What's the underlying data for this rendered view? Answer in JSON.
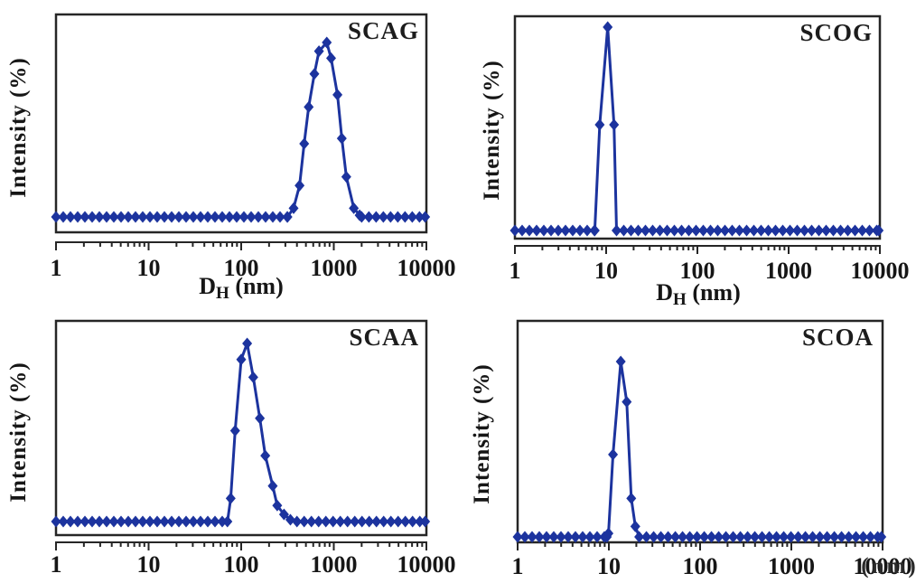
{
  "figure": {
    "background_color": "#ffffff",
    "series_color": "#1c339e",
    "axis_color": "#262626",
    "text_color": "#161616",
    "description": "Four DLS intensity-weighted hydrodynamic size distribution plots"
  },
  "chart_data": [
    {
      "type": "line",
      "title": "SCAG",
      "ylabel": "Intensity (%)",
      "xlabel": "D_H (nm)",
      "xlabel_visible": true,
      "xlabel_parts": {
        "main": "D",
        "sub": "H",
        "unit": " (nm)"
      },
      "x_scale": "log",
      "xlim": [
        1,
        10000
      ],
      "x_tick_labels": [
        "1",
        "10",
        "100",
        "1000",
        "10000"
      ],
      "marker": "diamond",
      "series_color": "#1c339e",
      "baseline_intensity": 0,
      "baseline_segments_nm": [
        [
          1,
          316
        ],
        [
          2000,
          9700
        ]
      ],
      "peak_points": [
        [
          368,
          5
        ],
        [
          427,
          18
        ],
        [
          479,
          42
        ],
        [
          536,
          63
        ],
        [
          617,
          82
        ],
        [
          692,
          95
        ],
        [
          840,
          100
        ],
        [
          935,
          91
        ],
        [
          1096,
          70
        ],
        [
          1220,
          45
        ],
        [
          1365,
          23
        ],
        [
          1645,
          5
        ],
        [
          1900,
          1
        ]
      ],
      "peak_nm": 840
    },
    {
      "type": "line",
      "title": "SCOG",
      "ylabel": "Intensity (%)",
      "xlabel": "D_H (nm)",
      "xlabel_visible": true,
      "xlabel_parts": {
        "main": "D",
        "sub": "H",
        "unit": " (nm)"
      },
      "x_scale": "log",
      "xlim": [
        1,
        10000
      ],
      "x_tick_labels": [
        "1",
        "10",
        "100",
        "1000",
        "10000"
      ],
      "marker": "diamond",
      "series_color": "#1c339e",
      "baseline_intensity": 0,
      "baseline_segments_nm": [
        [
          1,
          7.5
        ],
        [
          13,
          9700
        ]
      ],
      "peak_points": [
        [
          8.5,
          52
        ],
        [
          10.4,
          100
        ],
        [
          12.2,
          52
        ]
      ],
      "peak_nm": 10.4
    },
    {
      "type": "line",
      "title": "SCAA",
      "ylabel": "Intensity (%)",
      "xlabel": "",
      "xlabel_visible": false,
      "x_scale": "log",
      "xlim": [
        1,
        10000
      ],
      "x_tick_labels": [
        "1",
        "10",
        "100",
        "1000",
        "10000"
      ],
      "marker": "diamond",
      "series_color": "#1c339e",
      "baseline_intensity": 0,
      "baseline_segments_nm": [
        [
          1,
          71
        ],
        [
          400,
          9700
        ]
      ],
      "peak_points": [
        [
          77,
          13
        ],
        [
          86,
          51
        ],
        [
          100,
          91
        ],
        [
          116,
          100
        ],
        [
          135,
          81
        ],
        [
          159,
          58
        ],
        [
          182,
          37
        ],
        [
          219,
          20
        ],
        [
          245,
          9
        ],
        [
          290,
          4
        ],
        [
          340,
          1
        ]
      ],
      "peak_nm": 116
    },
    {
      "type": "line",
      "title": "SCOA",
      "ylabel": "Intensity (%)",
      "xlabel": "",
      "xlabel_visible": false,
      "x_scale": "log",
      "xlim": [
        1,
        10000
      ],
      "x_tick_labels": [
        "1",
        "10",
        "100",
        "1000",
        "10000"
      ],
      "x_tick_overlap_text": "(nm)",
      "marker": "diamond",
      "series_color": "#1c339e",
      "baseline_intensity": 0,
      "baseline_segments_nm": [
        [
          1,
          9.5
        ],
        [
          21.5,
          9700
        ]
      ],
      "peak_points": [
        [
          9.9,
          2
        ],
        [
          11.1,
          47
        ],
        [
          13.5,
          100
        ],
        [
          15.7,
          77
        ],
        [
          17.6,
          22
        ],
        [
          19.5,
          6
        ]
      ],
      "peak_nm": 13.5
    }
  ]
}
